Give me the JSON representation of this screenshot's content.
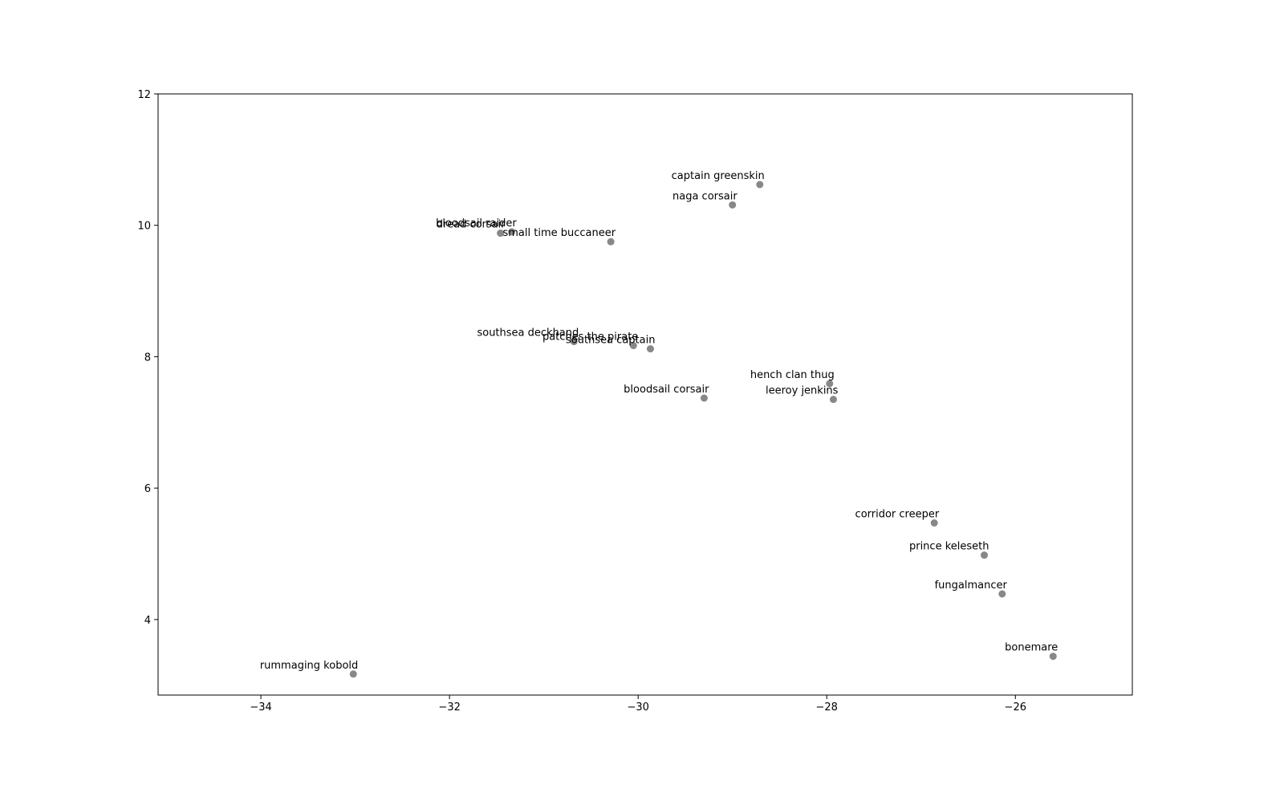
{
  "chart_data": {
    "type": "scatter",
    "labels": [
      "captain greenskin",
      "naga corsair",
      "bloodsail raider",
      "dread corsair",
      "small time buccaneer",
      "southsea deckhand",
      "patches the pirate",
      "southsea captain",
      "bloodsail corsair",
      "hench clan thug",
      "leeroy jenkins",
      "corridor creeper",
      "prince keleseth",
      "fungalmancer",
      "bonemare",
      "rummaging kobold"
    ],
    "x": [
      -28.71,
      -29.0,
      -31.34,
      -31.46,
      -30.29,
      -30.68,
      -30.05,
      -29.87,
      -29.3,
      -27.97,
      -27.93,
      -26.86,
      -26.33,
      -26.14,
      -25.6,
      -33.02
    ],
    "y": [
      10.62,
      10.31,
      9.9,
      9.88,
      9.75,
      8.23,
      8.17,
      8.12,
      7.37,
      7.59,
      7.35,
      5.47,
      4.98,
      4.39,
      3.44,
      3.17
    ],
    "color": "#888888",
    "xlim": [
      -35.09,
      -24.76
    ],
    "ylim": [
      2.85,
      12
    ],
    "xticks": [
      {
        "value": -34,
        "label": "−34"
      },
      {
        "value": -32,
        "label": "−32"
      },
      {
        "value": -30,
        "label": "−30"
      },
      {
        "value": -28,
        "label": "−28"
      },
      {
        "value": -26,
        "label": "−26"
      }
    ],
    "yticks": [
      4,
      6,
      8,
      10,
      12
    ]
  }
}
